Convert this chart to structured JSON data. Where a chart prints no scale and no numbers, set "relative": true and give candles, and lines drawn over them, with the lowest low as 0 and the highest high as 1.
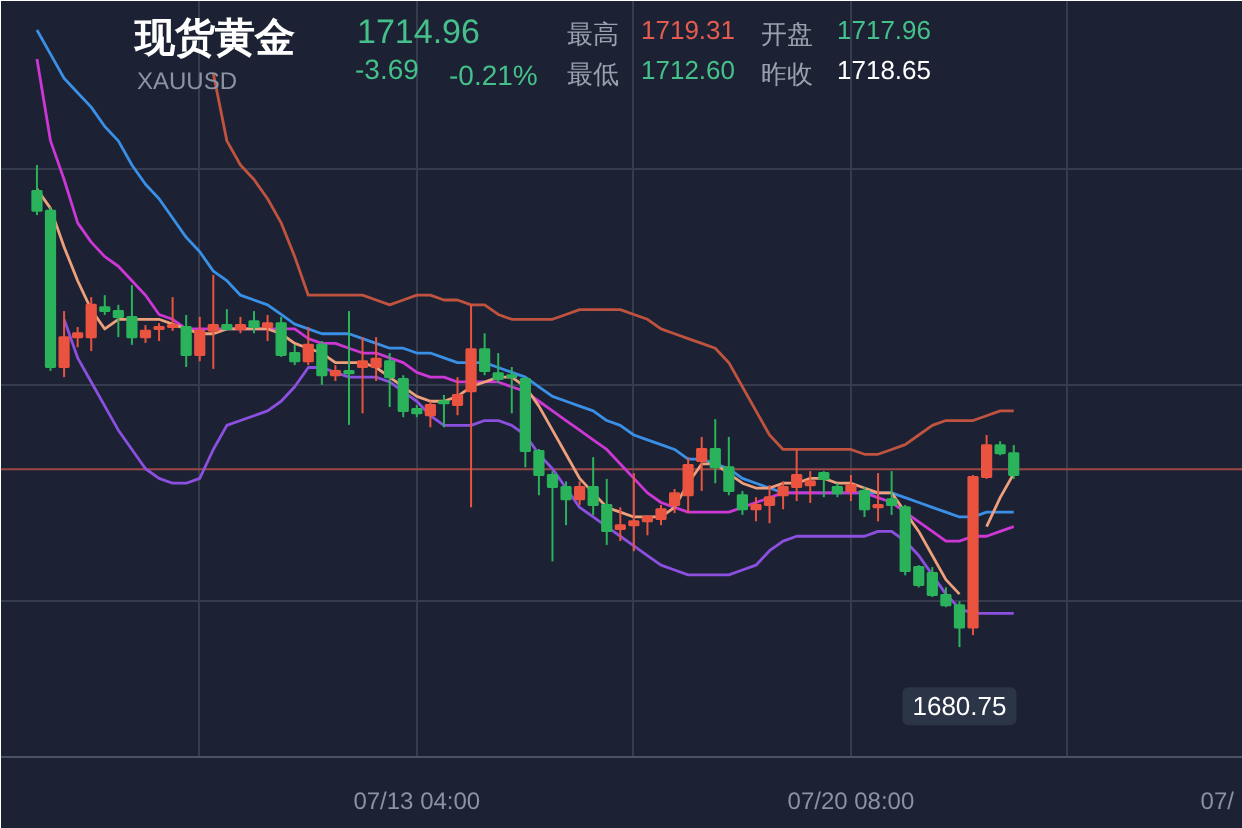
{
  "chart_data": {
    "type": "candlestick",
    "title": "现货黄金",
    "subtitle": "XAUUSD",
    "annotations": [
      "1714.96",
      "-3.69",
      "-0.21%",
      "最高",
      "1719.31",
      "开盘",
      "1717.96",
      "最低",
      "1712.60",
      "昨收",
      "1718.65",
      {
        "text": "1680.75",
        "y": 0
      }
    ],
    "relative": true,
    "grid": true,
    "categories": [
      null,
      null,
      null,
      null,
      null,
      null,
      null,
      null,
      null,
      null,
      null,
      null,
      null,
      null,
      null,
      null,
      null,
      null,
      null,
      null,
      null,
      null,
      null,
      null,
      null,
      null,
      null,
      null,
      "07/13 04:00",
      null,
      null,
      null,
      null,
      null,
      null,
      null,
      null,
      null,
      null,
      null,
      null,
      null,
      null,
      null,
      null,
      null,
      null,
      null,
      null,
      null,
      null,
      null,
      null,
      null,
      null,
      null,
      null,
      null,
      null,
      null,
      "07/20 08:00",
      null,
      null,
      null,
      null,
      null,
      null,
      null,
      null,
      null,
      null,
      null,
      null,
      null,
      null,
      null,
      null,
      null,
      null,
      null,
      null,
      null,
      null,
      null,
      null,
      null,
      null,
      "07/"
    ],
    "ohlc": [
      [
        0.946,
        1.0,
        0.896,
        0.905
      ],
      [
        0.905,
        0.913,
        0.573,
        0.581
      ],
      [
        0.581,
        0.697,
        0.56,
        0.643
      ],
      [
        0.643,
        0.664,
        0.622,
        0.651
      ],
      [
        0.643,
        0.726,
        0.614,
        0.71
      ],
      [
        0.705,
        0.73,
        0.689,
        0.697
      ],
      [
        0.697,
        0.71,
        0.643,
        0.685
      ],
      [
        0.685,
        0.751,
        0.627,
        0.643
      ],
      [
        0.643,
        0.668,
        0.631,
        0.656
      ],
      [
        0.66,
        0.672,
        0.635,
        0.664
      ],
      [
        0.664,
        0.726,
        0.656,
        0.668
      ],
      [
        0.664,
        0.689,
        0.581,
        0.606
      ],
      [
        0.606,
        0.685,
        0.593,
        0.656
      ],
      [
        0.656,
        0.772,
        0.577,
        0.668
      ],
      [
        0.668,
        0.701,
        0.656,
        0.66
      ],
      [
        0.66,
        0.685,
        0.651,
        0.668
      ],
      [
        0.676,
        0.697,
        0.651,
        0.664
      ],
      [
        0.664,
        0.689,
        0.635,
        0.672
      ],
      [
        0.672,
        0.685,
        0.602,
        0.606
      ],
      [
        0.61,
        0.627,
        0.585,
        0.593
      ],
      [
        0.593,
        0.664,
        0.585,
        0.627
      ],
      [
        0.627,
        0.635,
        0.544,
        0.564
      ],
      [
        0.564,
        0.585,
        0.552,
        0.573
      ],
      [
        0.573,
        0.697,
        0.461,
        0.568
      ],
      [
        0.581,
        0.643,
        0.485,
        0.593
      ],
      [
        0.581,
        0.643,
        0.552,
        0.598
      ],
      [
        0.593,
        0.61,
        0.498,
        0.56
      ],
      [
        0.556,
        0.564,
        0.477,
        0.49
      ],
      [
        0.494,
        0.502,
        0.477,
        0.485
      ],
      [
        0.481,
        0.51,
        0.456,
        0.502
      ],
      [
        0.51,
        0.523,
        0.456,
        0.506
      ],
      [
        0.502,
        0.56,
        0.481,
        0.523
      ],
      [
        0.531,
        0.71,
        0.29,
        0.618
      ],
      [
        0.618,
        0.651,
        0.564,
        0.573
      ],
      [
        0.568,
        0.61,
        0.548,
        0.556
      ],
      [
        0.564,
        0.581,
        0.485,
        0.56
      ],
      [
        0.556,
        0.56,
        0.373,
        0.407
      ],
      [
        0.407,
        0.411,
        0.315,
        0.357
      ],
      [
        0.357,
        0.365,
        0.178,
        0.332
      ],
      [
        0.332,
        0.344,
        0.253,
        0.307
      ],
      [
        0.307,
        0.344,
        0.295,
        0.332
      ],
      [
        0.332,
        0.394,
        0.274,
        0.295
      ],
      [
        0.295,
        0.349,
        0.212,
        0.241
      ],
      [
        0.245,
        0.29,
        0.22,
        0.253
      ],
      [
        0.253,
        0.361,
        0.199,
        0.261
      ],
      [
        0.261,
        0.274,
        0.232,
        0.27
      ],
      [
        0.266,
        0.295,
        0.253,
        0.286
      ],
      [
        0.295,
        0.328,
        0.278,
        0.319
      ],
      [
        0.315,
        0.394,
        0.278,
        0.378
      ],
      [
        0.386,
        0.436,
        0.324,
        0.411
      ],
      [
        0.411,
        0.473,
        0.34,
        0.373
      ],
      [
        0.373,
        0.436,
        0.315,
        0.324
      ],
      [
        0.315,
        0.324,
        0.274,
        0.286
      ],
      [
        0.286,
        0.311,
        0.261,
        0.295
      ],
      [
        0.295,
        0.336,
        0.257,
        0.311
      ],
      [
        0.315,
        0.344,
        0.286,
        0.332
      ],
      [
        0.332,
        0.411,
        0.303,
        0.357
      ],
      [
        0.336,
        0.365,
        0.299,
        0.344
      ],
      [
        0.361,
        0.365,
        0.311,
        0.349
      ],
      [
        0.332,
        0.34,
        0.311,
        0.319
      ],
      [
        0.324,
        0.357,
        0.303,
        0.336
      ],
      [
        0.324,
        0.332,
        0.27,
        0.286
      ],
      [
        0.29,
        0.361,
        0.261,
        0.295
      ],
      [
        0.307,
        0.365,
        0.274,
        0.295
      ],
      [
        0.29,
        0.295,
        0.149,
        0.158
      ],
      [
        0.166,
        0.17,
        0.124,
        0.129
      ],
      [
        0.154,
        0.166,
        0.104,
        0.108
      ],
      [
        0.108,
        0.124,
        0.083,
        0.087
      ],
      [
        0.087,
        0.095,
        0.0,
        0.041
      ],
      [
        0.041,
        0.357,
        0.025,
        0.353
      ],
      [
        0.353,
        0.44,
        0.349,
        0.419
      ],
      [
        0.419,
        0.427,
        0.398,
        0.402
      ],
      [
        0.402,
        0.419,
        0.349,
        0.357
      ],
      null,
      null,
      null,
      null,
      null,
      null,
      null,
      null,
      null,
      null,
      null,
      null,
      null,
      null,
      null
    ],
    "colors": [
      "#2ab35a",
      "#2ab35a",
      "#e9533f",
      "#e9533f",
      "#e9533f",
      "#2ab35a",
      "#2ab35a",
      "#2ab35a",
      "#e9533f",
      "#e9533f",
      "#e9533f",
      "#2ab35a",
      "#e9533f",
      "#e9533f",
      "#2ab35a",
      "#e9533f",
      "#2ab35a",
      "#e9533f",
      "#2ab35a",
      "#2ab35a",
      "#e9533f",
      "#2ab35a",
      "#e9533f",
      "#2ab35a",
      "#e9533f",
      "#e9533f",
      "#2ab35a",
      "#2ab35a",
      "#2ab35a",
      "#e9533f",
      "#2ab35a",
      "#e9533f",
      "#e9533f",
      "#2ab35a",
      "#2ab35a",
      "#2ab35a",
      "#2ab35a",
      "#2ab35a",
      "#2ab35a",
      "#2ab35a",
      "#e9533f",
      "#2ab35a",
      "#2ab35a",
      "#e9533f",
      "#e9533f",
      "#e9533f",
      "#e9533f",
      "#e9533f",
      "#e9533f",
      "#e9533f",
      "#2ab35a",
      "#2ab35a",
      "#2ab35a",
      "#e9533f",
      "#e9533f",
      "#e9533f",
      "#e9533f",
      "#e9533f",
      "#2ab35a",
      "#2ab35a",
      "#e9533f",
      "#2ab35a",
      "#e9533f",
      "#2ab35a",
      "#2ab35a",
      "#2ab35a",
      "#2ab35a",
      "#2ab35a",
      "#2ab35a",
      "#e9533f",
      "#e9533f",
      "#2ab35a",
      "#2ab35a",
      null,
      null,
      null,
      null,
      null,
      null,
      null,
      null,
      null,
      null,
      null,
      null,
      null,
      null,
      null
    ],
    "series": [
      {
        "type": "line",
        "color": "#c0533f",
        "values": [
          null,
          null,
          null,
          null,
          null,
          null,
          null,
          null,
          null,
          null,
          null,
          null,
          null,
          1.19,
          1.05,
          1.0,
          0.97,
          0.93,
          0.88,
          0.81,
          0.73,
          0.73,
          0.73,
          0.73,
          0.73,
          0.72,
          0.71,
          0.72,
          0.73,
          0.73,
          0.72,
          0.72,
          0.71,
          0.71,
          0.69,
          0.68,
          0.68,
          0.68,
          0.68,
          0.69,
          0.7,
          0.7,
          0.7,
          0.7,
          0.69,
          0.68,
          0.66,
          0.65,
          0.64,
          0.63,
          0.62,
          0.59,
          0.54,
          0.49,
          0.44,
          0.41,
          0.41,
          0.41,
          0.41,
          0.41,
          0.41,
          0.4,
          0.4,
          0.41,
          0.42,
          0.44,
          0.46,
          0.47,
          0.47,
          0.47,
          0.48,
          0.49,
          0.49,
          null,
          null,
          null,
          null,
          null,
          null,
          null,
          null,
          null,
          null,
          null,
          null,
          null,
          null,
          null
        ]
      },
      {
        "type": "line",
        "color": "#8c50e0",
        "values": [
          null,
          null,
          0.68,
          0.6,
          0.55,
          0.5,
          0.45,
          0.41,
          0.37,
          0.35,
          0.34,
          0.34,
          0.35,
          0.41,
          0.46,
          0.47,
          0.48,
          0.49,
          0.51,
          0.54,
          0.58,
          0.58,
          0.57,
          0.56,
          0.56,
          0.56,
          0.55,
          0.53,
          0.51,
          0.48,
          0.46,
          0.46,
          0.46,
          0.47,
          0.47,
          0.46,
          0.44,
          0.4,
          0.37,
          0.33,
          0.29,
          0.27,
          0.25,
          0.23,
          0.21,
          0.19,
          0.17,
          0.16,
          0.15,
          0.15,
          0.15,
          0.15,
          0.16,
          0.17,
          0.2,
          0.22,
          0.23,
          0.23,
          0.23,
          0.23,
          0.23,
          0.23,
          0.24,
          0.24,
          0.22,
          0.19,
          0.15,
          0.11,
          0.08,
          0.07,
          0.07,
          0.07,
          0.07,
          null,
          null,
          null,
          null,
          null,
          null,
          null,
          null,
          null,
          null,
          null,
          null,
          null,
          null,
          null
        ]
      },
      {
        "type": "line",
        "color": "#3a8fe6",
        "values": [
          1.28,
          1.23,
          1.18,
          1.15,
          1.12,
          1.08,
          1.05,
          1.0,
          0.96,
          0.93,
          0.89,
          0.85,
          0.82,
          0.78,
          0.76,
          0.73,
          0.72,
          0.71,
          0.69,
          0.67,
          0.66,
          0.65,
          0.65,
          0.65,
          0.64,
          0.63,
          0.62,
          0.62,
          0.61,
          0.61,
          0.6,
          0.59,
          0.59,
          0.59,
          0.58,
          0.57,
          0.56,
          0.54,
          0.52,
          0.51,
          0.5,
          0.49,
          0.47,
          0.46,
          0.44,
          0.43,
          0.42,
          0.41,
          0.39,
          0.39,
          0.38,
          0.37,
          0.35,
          0.34,
          0.33,
          0.32,
          0.32,
          0.32,
          0.32,
          0.32,
          0.32,
          0.32,
          0.32,
          0.32,
          0.31,
          0.3,
          0.29,
          0.28,
          0.27,
          0.27,
          0.28,
          0.28,
          0.28,
          null,
          null,
          null,
          null,
          null,
          null,
          null,
          null,
          null,
          null,
          null,
          null,
          null,
          null,
          null
        ]
      },
      {
        "type": "line",
        "color": "#cc37d5",
        "values": [
          1.22,
          1.05,
          0.97,
          0.88,
          0.84,
          0.81,
          0.79,
          0.76,
          0.73,
          0.69,
          0.68,
          0.66,
          0.66,
          0.66,
          0.66,
          0.66,
          0.66,
          0.66,
          0.66,
          0.66,
          0.64,
          0.63,
          0.63,
          0.62,
          0.61,
          0.61,
          0.6,
          0.59,
          0.57,
          0.56,
          0.56,
          0.55,
          0.55,
          0.55,
          0.55,
          0.54,
          0.53,
          0.51,
          0.49,
          0.47,
          0.45,
          0.43,
          0.41,
          0.38,
          0.35,
          0.32,
          0.3,
          0.29,
          0.28,
          0.28,
          0.28,
          0.28,
          0.29,
          0.3,
          0.31,
          0.32,
          0.32,
          0.32,
          0.32,
          0.32,
          0.32,
          0.32,
          0.31,
          0.3,
          0.28,
          0.26,
          0.24,
          0.22,
          0.22,
          0.23,
          0.23,
          0.24,
          0.25,
          null,
          null,
          null,
          null,
          null,
          null,
          null,
          null,
          null,
          null,
          null,
          null,
          null,
          null,
          null
        ]
      },
      {
        "type": "line",
        "color": "#eea07c",
        "values": [
          0.95,
          0.91,
          0.83,
          0.76,
          0.7,
          0.66,
          0.68,
          0.68,
          0.68,
          0.68,
          0.67,
          0.66,
          0.65,
          0.65,
          0.66,
          0.66,
          0.66,
          0.66,
          0.65,
          0.63,
          0.62,
          0.61,
          0.59,
          0.59,
          0.59,
          0.58,
          0.56,
          0.54,
          0.52,
          0.51,
          0.51,
          0.52,
          0.54,
          0.55,
          0.56,
          0.56,
          0.54,
          0.5,
          0.45,
          0.4,
          0.35,
          0.32,
          0.29,
          0.28,
          0.27,
          0.27,
          0.27,
          0.29,
          0.34,
          0.38,
          0.38,
          0.36,
          0.34,
          0.33,
          0.33,
          0.34,
          0.34,
          0.35,
          0.35,
          0.34,
          0.34,
          0.33,
          0.32,
          0.32,
          0.28,
          0.24,
          0.19,
          0.14,
          0.11,
          null,
          0.25,
          0.31,
          0.36,
          null,
          null,
          null,
          null,
          null,
          null,
          null,
          null,
          null,
          null,
          null,
          null,
          null,
          null,
          null
        ]
      }
    ],
    "ref_lines": [
      {
        "axis": "y",
        "value": 0.369,
        "color": "#9c4747"
      }
    ]
  }
}
